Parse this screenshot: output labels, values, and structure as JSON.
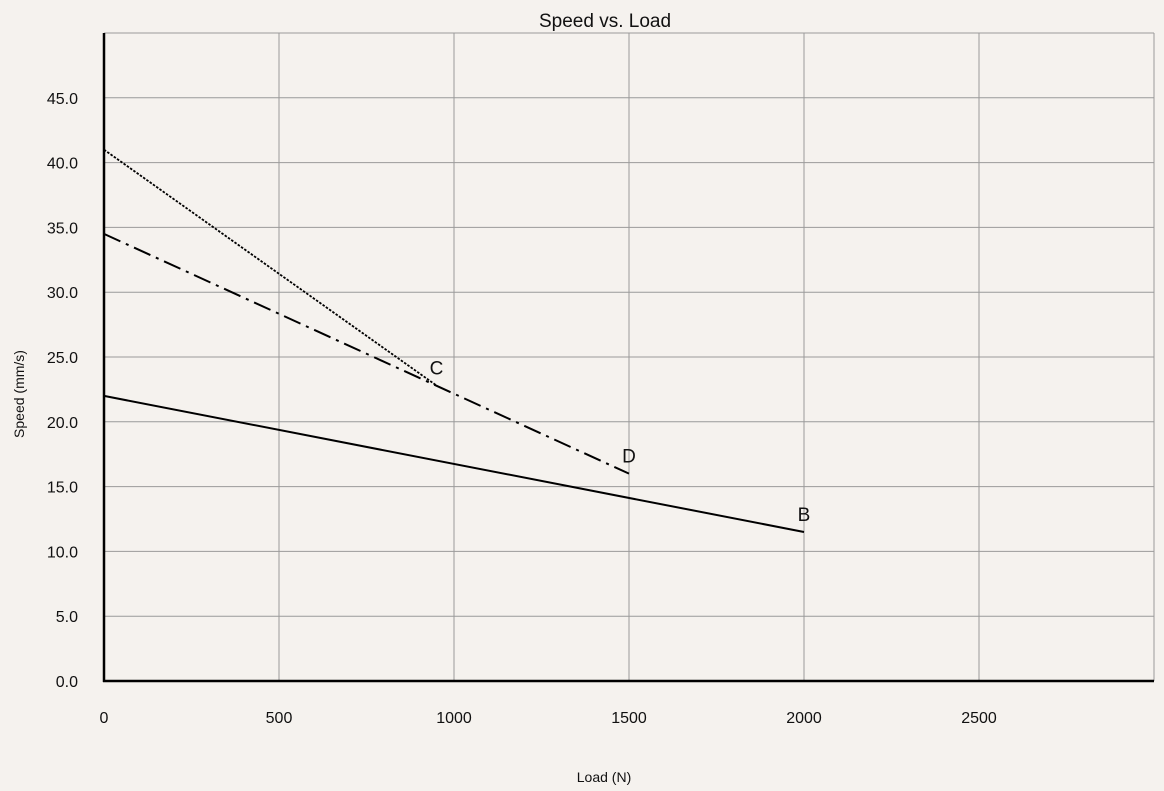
{
  "chart_data": {
    "type": "line",
    "title": "Speed vs. Load",
    "xlabel": "Load (N)",
    "ylabel": "Speed (mm/s)",
    "xlim": [
      0,
      3000
    ],
    "ylim": [
      0,
      50
    ],
    "xticks": [
      0,
      500,
      1000,
      1500,
      2000,
      2500
    ],
    "xtick_labels": [
      "0",
      "500",
      "1000",
      "1500",
      "2000",
      "2500"
    ],
    "yticks": [
      0,
      5,
      10,
      15,
      20,
      25,
      30,
      35,
      40,
      45
    ],
    "ytick_labels": [
      "0.0",
      "5.0",
      "10.0",
      "15.0",
      "20.0",
      "25.0",
      "30.0",
      "35.0",
      "40.0",
      "45.0"
    ],
    "grid": true,
    "series": [
      {
        "name": "B",
        "style": "solid",
        "color": "#000000",
        "x": [
          0,
          2000
        ],
        "y": [
          22.0,
          11.5
        ]
      },
      {
        "name": "C",
        "style": "dotted",
        "color": "#000000",
        "x": [
          0,
          950
        ],
        "y": [
          41.0,
          22.8
        ]
      },
      {
        "name": "D",
        "style": "dashdot",
        "color": "#000000",
        "x": [
          0,
          1500
        ],
        "y": [
          34.5,
          16.0
        ]
      }
    ]
  }
}
